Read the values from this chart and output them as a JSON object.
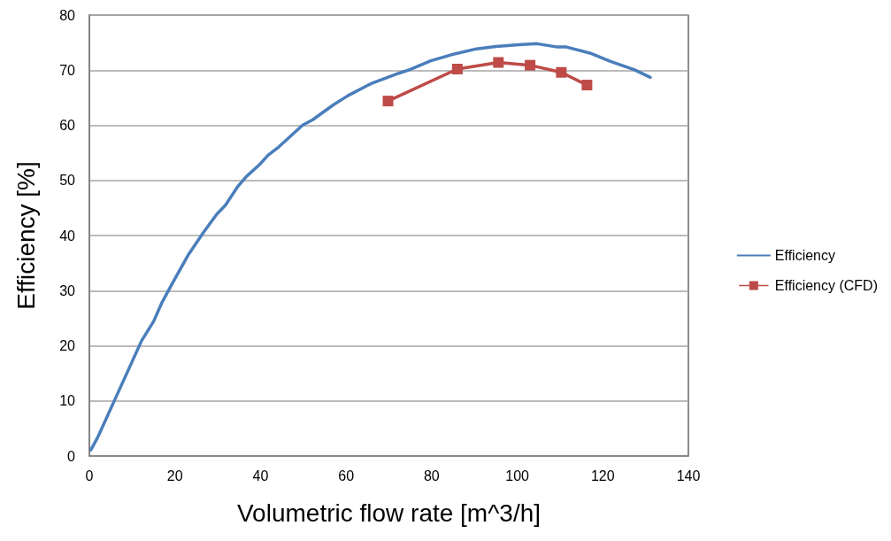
{
  "chart_data": {
    "type": "line",
    "xlabel": "Volumetric flow rate [m^3/h]",
    "ylabel": "Efficiency [%]",
    "xlim": [
      0,
      140
    ],
    "xticks": [
      0,
      20,
      40,
      60,
      80,
      100,
      120,
      140
    ],
    "ylim": [
      0,
      80
    ],
    "yticks": [
      0,
      10,
      20,
      30,
      40,
      50,
      60,
      70,
      80
    ],
    "grid": "y",
    "legend": "right",
    "line_style": "solid",
    "series": [
      {
        "name": "Efficiency",
        "color": "#4a7ebb",
        "marker": "none",
        "x": [
          0.35,
          1.9,
          6,
          12.2,
          15,
          17,
          19.1,
          23.2,
          26.7,
          29.8,
          31.8,
          34.6,
          36.7,
          39.8,
          41.8,
          44.3,
          49.8,
          52.2,
          57,
          60.5,
          64.7,
          66,
          72.2,
          74.9,
          79.8,
          84.6,
          90.1,
          95,
          100.4,
          104.6,
          109.4,
          111.5,
          117,
          121.8,
          127.3,
          131.1
        ],
        "values": [
          1.1,
          3.3,
          10.3,
          20.9,
          24.4,
          27.9,
          30.9,
          36.6,
          40.6,
          43.9,
          45.5,
          48.8,
          50.7,
          52.9,
          54.6,
          56.1,
          60.0,
          61.0,
          63.7,
          65.4,
          67.1,
          67.6,
          69.4,
          70.1,
          71.7,
          72.8,
          73.8,
          74.3,
          74.6,
          74.8,
          74.2,
          74.2,
          73.1,
          71.6,
          70.1,
          68.7
        ]
      },
      {
        "name": "Efficiency (CFD)",
        "color": "#be4b48",
        "marker": "square",
        "x": [
          69.8,
          86,
          95.6,
          103,
          110.3,
          116.3
        ],
        "values": [
          64.4,
          70.2,
          71.4,
          70.9,
          69.6,
          67.3
        ]
      }
    ]
  }
}
